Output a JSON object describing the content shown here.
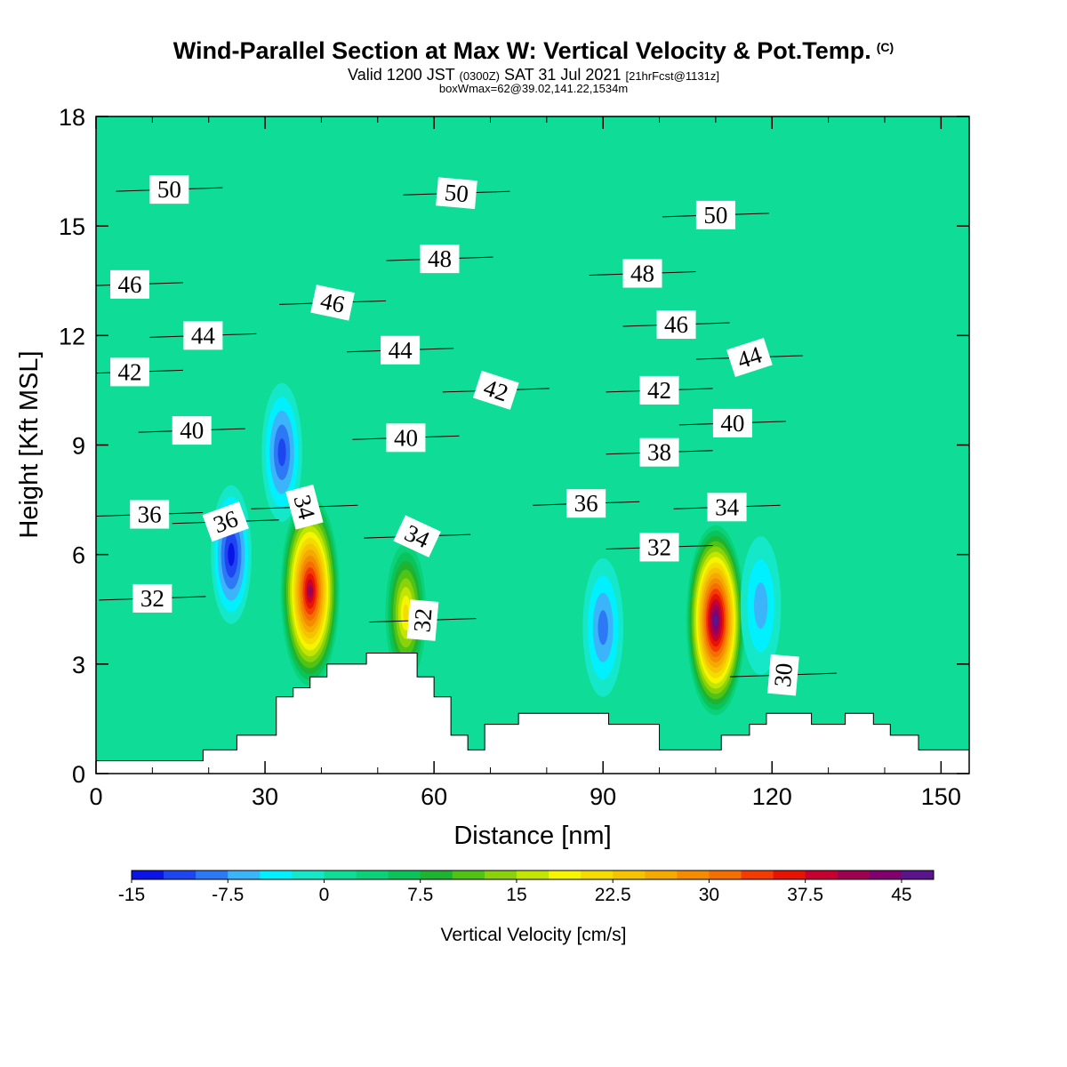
{
  "header": {
    "title": "Wind-Parallel Section at Max W: Vertical Velocity & Pot.Temp.",
    "copyright_mark": "(C)",
    "valid_prefix": "Valid 1200 JST",
    "utc_time": "(0300Z)",
    "valid_date": "SAT 31 Jul 2021",
    "forecast_info": "[21hrFcst@1131z]",
    "box_info": "boxWmax=62@39.02,141.22,1534m"
  },
  "chart_data": {
    "type": "heatmap",
    "title": "Wind-Parallel Section at Max W: Vertical Velocity & Pot.Temp.",
    "xlabel": "Distance [nm]",
    "ylabel": "Height [Kft MSL]",
    "xlim": [
      0,
      155
    ],
    "ylim": [
      0,
      18
    ],
    "x_ticks": [
      0,
      30,
      60,
      90,
      120,
      150
    ],
    "y_ticks": [
      0,
      3,
      6,
      9,
      12,
      15,
      18
    ],
    "colorbar": {
      "label": "Vertical Velocity [cm/s]",
      "tick_labels": [
        "-15",
        "-7.5",
        "0",
        "7.5",
        "15",
        "22.5",
        "30",
        "37.5",
        "45"
      ],
      "min": -15,
      "max": 48,
      "step": 2.5,
      "colors": [
        "#0a14e6",
        "#1e46f0",
        "#2d78f5",
        "#3cb4fa",
        "#00f0ff",
        "#14e8c8",
        "#0fdc96",
        "#0ad278",
        "#0ac35a",
        "#1eb432",
        "#50c314",
        "#8cd20a",
        "#c3e600",
        "#f5f500",
        "#f5dc00",
        "#f5c300",
        "#f5aa00",
        "#f58c00",
        "#f56e00",
        "#f53c00",
        "#e61400",
        "#c80032",
        "#a00050",
        "#82006e",
        "#5a148c"
      ]
    },
    "background_value": 0,
    "w_features": [
      {
        "x": 38,
        "y": 5.0,
        "w": 40,
        "label": "updraft"
      },
      {
        "x": 110,
        "y": 4.2,
        "w": 46,
        "label": "updraft"
      },
      {
        "x": 55,
        "y": 4.4,
        "w": 20,
        "label": "updraft"
      },
      {
        "x": 24,
        "y": 6.0,
        "w": -15,
        "label": "downdraft"
      },
      {
        "x": 33,
        "y": 8.8,
        "w": -13,
        "label": "downdraft"
      },
      {
        "x": 90,
        "y": 4.0,
        "w": -10,
        "label": "downdraft"
      },
      {
        "x": 118,
        "y": 4.6,
        "w": -8,
        "label": "downdraft"
      }
    ],
    "terrain": {
      "x": [
        0,
        16,
        19,
        22,
        25,
        29,
        32,
        35,
        38,
        41,
        48,
        55,
        57,
        60,
        63,
        66,
        69,
        75,
        82,
        88,
        91,
        95,
        100,
        106,
        111,
        116,
        119,
        122,
        127,
        130,
        133,
        138,
        141,
        146,
        150,
        155
      ],
      "y": [
        0.35,
        0.35,
        0.65,
        0.65,
        1.05,
        1.05,
        2.1,
        2.35,
        2.65,
        3.0,
        3.3,
        3.3,
        2.65,
        2.1,
        1.05,
        0.65,
        1.35,
        1.65,
        1.65,
        1.65,
        1.35,
        1.35,
        0.65,
        0.65,
        1.05,
        1.35,
        1.65,
        1.65,
        1.35,
        1.35,
        1.65,
        1.35,
        1.05,
        0.65,
        0.65,
        0.65
      ]
    },
    "theta_contours": [
      {
        "value": "32",
        "x": 10,
        "y": 4.8
      },
      {
        "value": "36",
        "x": 9.5,
        "y": 7.1
      },
      {
        "value": "36",
        "x": 23,
        "y": 6.9,
        "angle": -20
      },
      {
        "value": "34",
        "x": 37,
        "y": 7.3,
        "angle": 75
      },
      {
        "value": "34",
        "x": 57,
        "y": 6.5,
        "angle": 25
      },
      {
        "value": "32",
        "x": 58,
        "y": 4.2,
        "angle": -85
      },
      {
        "value": "30",
        "x": 122,
        "y": 2.7,
        "angle": -85
      },
      {
        "value": "32",
        "x": 100,
        "y": 6.2
      },
      {
        "value": "34",
        "x": 112,
        "y": 7.3
      },
      {
        "value": "36",
        "x": 87,
        "y": 7.4
      },
      {
        "value": "38",
        "x": 100,
        "y": 8.8
      },
      {
        "value": "40",
        "x": 17,
        "y": 9.4
      },
      {
        "value": "40",
        "x": 55,
        "y": 9.2
      },
      {
        "value": "40",
        "x": 113,
        "y": 9.6
      },
      {
        "value": "42",
        "x": 6,
        "y": 11.0
      },
      {
        "value": "42",
        "x": 71,
        "y": 10.5,
        "angle": 18
      },
      {
        "value": "42",
        "x": 100,
        "y": 10.5
      },
      {
        "value": "44",
        "x": 19,
        "y": 12.0
      },
      {
        "value": "44",
        "x": 54,
        "y": 11.6
      },
      {
        "value": "44",
        "x": 116,
        "y": 11.4,
        "angle": -18
      },
      {
        "value": "46",
        "x": 6,
        "y": 13.4
      },
      {
        "value": "46",
        "x": 42,
        "y": 12.9,
        "angle": 12
      },
      {
        "value": "46",
        "x": 103,
        "y": 12.3
      },
      {
        "value": "48",
        "x": 61,
        "y": 14.1
      },
      {
        "value": "48",
        "x": 97,
        "y": 13.7
      },
      {
        "value": "50",
        "x": 13,
        "y": 16.0
      },
      {
        "value": "50",
        "x": 64,
        "y": 15.9,
        "angle": 5
      },
      {
        "value": "50",
        "x": 110,
        "y": 15.3
      }
    ]
  }
}
